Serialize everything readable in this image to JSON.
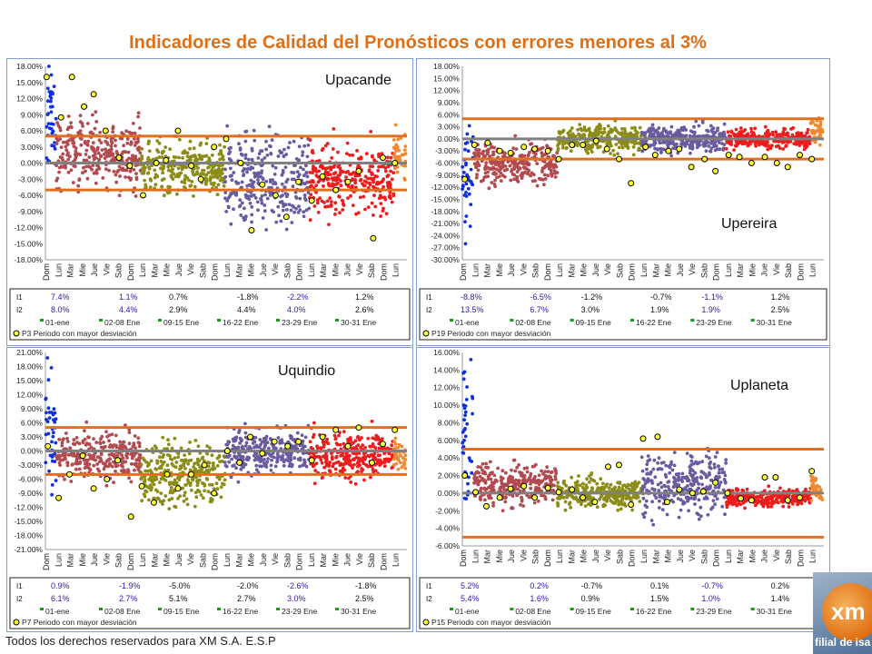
{
  "title": "Indicadores de Calidad del Pronósticos con errores menores al 3%",
  "footer": "Todos los derechos reservados para XM S.A. E.S.P",
  "logo": {
    "mark": "xm",
    "text": "filial de isa"
  },
  "colors": {
    "title": "#e06e14",
    "band": "#e07020",
    "center": "#808080",
    "highlight": "#ffff33",
    "periods": [
      "#1030e0",
      "#b24a50",
      "#8c8c18",
      "#6a5aa0",
      "#ee1c1c",
      "#f08a30"
    ]
  },
  "day_labels": [
    "Dom",
    "Lun",
    "Mar",
    "Mie",
    "Jue",
    "Vie",
    "Sab",
    "Dom",
    "Lun",
    "Mar",
    "Mie",
    "Jue",
    "Vie",
    "Sab",
    "Dom",
    "Lun",
    "Mar",
    "Mie",
    "Jue",
    "Vie",
    "Sab",
    "Dom",
    "Lun",
    "Mar",
    "Mie",
    "Jue",
    "Vie",
    "Sab",
    "Dom",
    "Lun"
  ],
  "chart_data": [
    {
      "id": "upacande",
      "type": "scatter",
      "title": "Upacande",
      "ylim": [
        -18,
        18
      ],
      "yticks": [
        18,
        15,
        12,
        9,
        6,
        3,
        0,
        -3,
        -6,
        -9,
        -12,
        -15,
        -18
      ],
      "band": [
        5,
        -5
      ],
      "table": {
        "row_labels": [
          "I1",
          "I2"
        ],
        "periods": [
          "01-ene",
          "02-08 Ene",
          "09-15 Ene",
          "16-22 Ene",
          "23-29 Ene",
          "30-31 Ene"
        ],
        "I1": [
          "7.4%",
          "1.1%",
          "0.7%",
          "-1.8%",
          "-2.2%",
          "1.2%"
        ],
        "I2": [
          "8.0%",
          "4.4%",
          "2.9%",
          "4.4%",
          "4.0%",
          "2.6%"
        ]
      },
      "legend": "P3  Periodo con mayor desviación",
      "highlighted": [
        [
          0.1,
          16
        ],
        [
          1.3,
          8.5
        ],
        [
          2.2,
          16
        ],
        [
          3.2,
          10.5
        ],
        [
          4.0,
          12.8
        ],
        [
          5.0,
          6
        ],
        [
          6.1,
          1
        ],
        [
          7.0,
          -0.5
        ],
        [
          8.1,
          -6
        ],
        [
          9.2,
          0
        ],
        [
          10.0,
          0.5
        ],
        [
          11.0,
          6
        ],
        [
          12.1,
          -0.5
        ],
        [
          12.9,
          -3
        ],
        [
          14.0,
          3
        ],
        [
          15.0,
          4.5
        ],
        [
          16.2,
          0
        ],
        [
          17.1,
          -12.5
        ],
        [
          18.0,
          -4
        ],
        [
          19.1,
          -6
        ],
        [
          20.0,
          -10
        ],
        [
          21.0,
          -3.5
        ],
        [
          22.1,
          -7
        ],
        [
          23.0,
          -2.5
        ],
        [
          24.1,
          -5
        ],
        [
          25.1,
          -3.5
        ],
        [
          26.0,
          -1.5
        ],
        [
          27.2,
          -14
        ],
        [
          28.0,
          1
        ],
        [
          29.0,
          0
        ]
      ]
    },
    {
      "id": "upereira",
      "type": "scatter",
      "title": "Upereira",
      "ylim": [
        -30,
        18
      ],
      "yticks": [
        18,
        15,
        12,
        9,
        6,
        3,
        0,
        -3,
        -6,
        -9,
        -12,
        -15,
        -18,
        -21,
        -24,
        -27,
        -30
      ],
      "band": [
        5,
        -5
      ],
      "table": {
        "row_labels": [
          "I1",
          "I2"
        ],
        "periods": [
          "01-ene",
          "02-08 Ene",
          "09-15 Ene",
          "16-22 Ene",
          "23-29 Ene",
          "30-31 Ene"
        ],
        "I1": [
          "-8.8%",
          "-6.5%",
          "-1.2%",
          "-0.7%",
          "-1.1%",
          "1.2%"
        ],
        "I2": [
          "13.5%",
          "6.7%",
          "3.0%",
          "1.9%",
          "1.9%",
          "2.5%"
        ]
      },
      "legend": "P19  Periodo con mayor desviación",
      "highlighted": [
        [
          0.2,
          -10
        ],
        [
          1.0,
          -1.5
        ],
        [
          2.1,
          -1
        ],
        [
          3.1,
          -3
        ],
        [
          4.0,
          -3.5
        ],
        [
          5.1,
          -2
        ],
        [
          6.0,
          -2.5
        ],
        [
          7.1,
          -3
        ],
        [
          8.0,
          -5
        ],
        [
          9.1,
          -1.5
        ],
        [
          10.0,
          -1.5
        ],
        [
          11.1,
          -0.5
        ],
        [
          12.0,
          -2.5
        ],
        [
          13.0,
          -5
        ],
        [
          14.0,
          -11
        ],
        [
          15.2,
          -2
        ],
        [
          16.0,
          -4
        ],
        [
          17.1,
          -3
        ],
        [
          18.0,
          -2.5
        ],
        [
          19.0,
          -7
        ],
        [
          20.1,
          -5
        ],
        [
          21.0,
          -8
        ],
        [
          22.1,
          -4
        ],
        [
          23.0,
          -4.5
        ],
        [
          24.0,
          -6
        ],
        [
          25.1,
          -4.5
        ],
        [
          26.1,
          -6
        ],
        [
          27.0,
          -7
        ],
        [
          28.0,
          -4
        ],
        [
          29.0,
          -5
        ]
      ]
    },
    {
      "id": "uquindio",
      "type": "scatter",
      "title": "Uquindio",
      "ylim": [
        -21,
        21
      ],
      "yticks": [
        21,
        18,
        15,
        12,
        9,
        6,
        3,
        0,
        -3,
        -6,
        -9,
        -12,
        -15,
        -18,
        -21
      ],
      "band": [
        5,
        -5
      ],
      "table": {
        "row_labels": [
          "I1",
          "I2"
        ],
        "periods": [
          "01-ene",
          "02-08 Ene",
          "09-15 Ene",
          "16-22 Ene",
          "23-29 Ene",
          "30-31 Ene"
        ],
        "I1": [
          "0.9%",
          "-1.9%",
          "-5.0%",
          "-2.0%",
          "-2.6%",
          "-1.8%"
        ],
        "I2": [
          "6.1%",
          "2.7%",
          "5.1%",
          "2.7%",
          "3.0%",
          "2.5%"
        ]
      },
      "legend": "P7  Periodo con mayor desviación",
      "highlighted": [
        [
          0.2,
          1
        ],
        [
          1.1,
          -10
        ],
        [
          2.0,
          -5
        ],
        [
          3.1,
          -1
        ],
        [
          4.0,
          -8
        ],
        [
          5.1,
          -6
        ],
        [
          6.0,
          -2
        ],
        [
          7.1,
          -14
        ],
        [
          8.0,
          -7.5
        ],
        [
          9.0,
          -11
        ],
        [
          10.1,
          -5
        ],
        [
          11.0,
          -8
        ],
        [
          12.1,
          -5
        ],
        [
          13.2,
          -3
        ],
        [
          14.0,
          -9
        ],
        [
          15.1,
          0
        ],
        [
          16.1,
          -2.5
        ],
        [
          17.0,
          3
        ],
        [
          18.0,
          -0.5
        ],
        [
          19.0,
          2
        ],
        [
          20.1,
          1
        ],
        [
          21.0,
          2
        ],
        [
          22.1,
          -2
        ],
        [
          23.0,
          3
        ],
        [
          24.1,
          4.5
        ],
        [
          25.1,
          1
        ],
        [
          26.0,
          5
        ],
        [
          27.1,
          -2.5
        ],
        [
          28.0,
          1.5
        ],
        [
          29.0,
          4.5
        ]
      ]
    },
    {
      "id": "uplaneta",
      "type": "scatter",
      "title": "Uplaneta",
      "ylim": [
        -6,
        16
      ],
      "yticks": [
        16,
        14,
        12,
        10,
        8,
        6,
        4,
        2,
        0,
        -2,
        -4,
        -6
      ],
      "band": [
        5,
        -5
      ],
      "table": {
        "row_labels": [
          "I1",
          "I2"
        ],
        "periods": [
          "01-ene",
          "02-08 Ene",
          "09-15 Ene",
          "16-22 Ene",
          "23-29 Ene",
          "30-31 Ene"
        ],
        "I1": [
          "5.2%",
          "0.2%",
          "-0.7%",
          "0.1%",
          "-0.7%",
          "0.2%"
        ],
        "I2": [
          "5.4%",
          "1.6%",
          "0.9%",
          "1.5%",
          "1.0%",
          "1.4%"
        ]
      },
      "legend": "P15  Periodo con mayor desviación",
      "highlighted": [
        [
          0.2,
          2
        ],
        [
          1.1,
          0.1
        ],
        [
          2.0,
          -1.5
        ],
        [
          3.1,
          -0.5
        ],
        [
          4.0,
          0.5
        ],
        [
          5.1,
          0.8
        ],
        [
          6.0,
          -0.5
        ],
        [
          7.1,
          0.6
        ],
        [
          8.0,
          0.1
        ],
        [
          9.1,
          0.4
        ],
        [
          10.0,
          -0.5
        ],
        [
          11.0,
          -1
        ],
        [
          12.1,
          3
        ],
        [
          13.0,
          3.2
        ],
        [
          14.0,
          -1.3
        ],
        [
          15.0,
          6.2
        ],
        [
          16.2,
          6.4
        ],
        [
          17.0,
          -1
        ],
        [
          18.0,
          0.4
        ],
        [
          19.1,
          0
        ],
        [
          20.0,
          0.2
        ],
        [
          21.0,
          1.2
        ],
        [
          22.0,
          0
        ],
        [
          23.1,
          -0.6
        ],
        [
          24.0,
          -0.8
        ],
        [
          25.1,
          1.8
        ],
        [
          26.0,
          1.8
        ],
        [
          27.0,
          -0.8
        ],
        [
          28.0,
          -0.5
        ],
        [
          29.0,
          2.5
        ]
      ]
    }
  ]
}
